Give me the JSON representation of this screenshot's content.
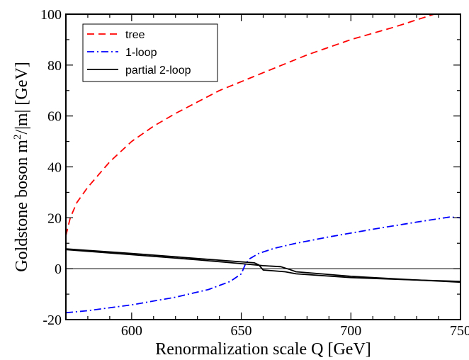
{
  "chart_data": {
    "type": "line",
    "xlabel": "Renormalization scale Q   [GeV]",
    "ylabel": {
      "prefix": "Goldstone boson  m",
      "sup": "2",
      "suffix": "/|m|  [GeV]"
    },
    "xlim": [
      570,
      750
    ],
    "ylim": [
      -20,
      100
    ],
    "xticks": [
      600,
      650,
      700,
      750
    ],
    "yticks": [
      -20,
      0,
      20,
      40,
      60,
      80,
      100
    ],
    "xtick_labels": [
      "600",
      "650",
      "700",
      "750"
    ],
    "ytick_labels": [
      "-20",
      "0",
      "20",
      "40",
      "60",
      "80",
      "100"
    ],
    "legend_position": "top-left",
    "zero_line": true,
    "series": [
      {
        "name": "tree",
        "color": "#ff0000",
        "dash": "dashed",
        "x": [
          570,
          572,
          575,
          580,
          590,
          600,
          610,
          620,
          640,
          660,
          680,
          700,
          720,
          738
        ],
        "y": [
          13,
          20,
          26,
          32,
          42,
          50,
          56,
          61,
          70,
          77,
          84,
          90,
          95,
          100
        ]
      },
      {
        "name": "1-loop",
        "color": "#0000ff",
        "dash": "dashdot",
        "x": [
          570,
          580,
          600,
          620,
          635,
          645,
          650,
          652,
          654,
          658,
          665,
          675,
          690,
          710,
          730,
          745,
          750
        ],
        "y": [
          -17.3,
          -16.5,
          -14.2,
          -11.2,
          -8.2,
          -5,
          -2,
          2,
          4,
          6,
          8,
          10,
          12.5,
          15.5,
          18.3,
          20.3,
          20
        ]
      },
      {
        "name": "partial 2-loop",
        "color": "#000000",
        "dash": "solid",
        "x": [
          570,
          600,
          630,
          650,
          656,
          658,
          660,
          670,
          672,
          675,
          700,
          725,
          750
        ],
        "y": [
          7.8,
          6,
          4,
          2.7,
          2.3,
          1.5,
          -0.5,
          -1.2,
          -1.5,
          -2,
          -3.5,
          -4.3,
          -5
        ]
      },
      {
        "name": "",
        "color": "#000000",
        "dash": "solid",
        "x": [
          570,
          600,
          630,
          650,
          660,
          668,
          672,
          675,
          700,
          725,
          750
        ],
        "y": [
          7.5,
          5.5,
          3.5,
          2,
          1.2,
          0.8,
          -0.3,
          -1.2,
          -3,
          -4.2,
          -5.3
        ]
      }
    ]
  }
}
